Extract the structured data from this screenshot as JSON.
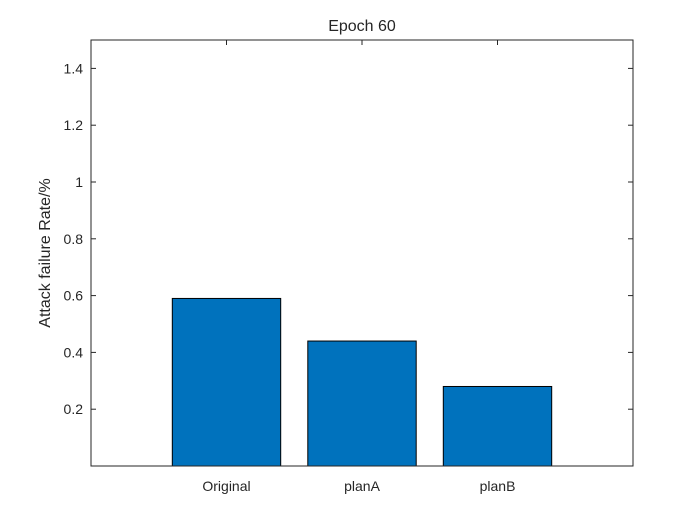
{
  "chart_data": {
    "type": "bar",
    "title": "Epoch 60",
    "xlabel": "",
    "ylabel": "Attack failure Rate/%",
    "categories": [
      "Original",
      "planA",
      "planB"
    ],
    "values": [
      0.59,
      0.44,
      0.28
    ],
    "xlim": [
      0,
      4
    ],
    "ylim": [
      0,
      1.5
    ],
    "yticks": [
      0.2,
      0.4,
      0.6,
      0.8,
      1,
      1.2,
      1.4
    ],
    "ytick_labels": [
      "0.2",
      "0.4",
      "0.6",
      "0.8",
      "1",
      "1.2",
      "1.4"
    ],
    "bar_color": "#0072BD",
    "grid": false,
    "legend": "none"
  }
}
